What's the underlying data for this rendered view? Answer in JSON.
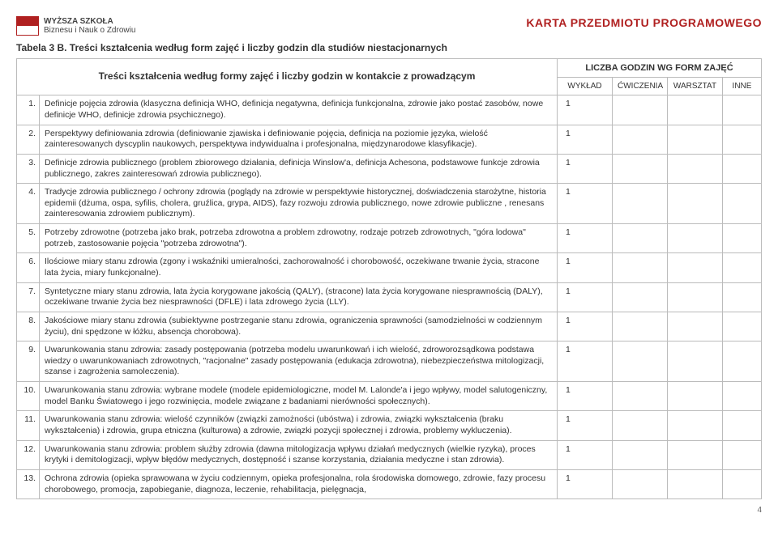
{
  "header": {
    "logo_top": "WYŻSZA SZKOŁA",
    "logo_bottom": "Biznesu i Nauk o Zdrowiu",
    "karta": "KARTA PRZEDMIOTU PROGRAMOWEGO"
  },
  "caption": "Tabela 3 B. Treści kształcenia według form zajęć i liczby godzin dla studiów niestacjonarnych",
  "table": {
    "tresci_header": "Treści kształcenia według formy zajęć i liczby godzin w kontakcie z prowadzącym",
    "liczba_header": "LICZBA GODZIN WG FORM ZAJĘĆ",
    "cols": [
      "WYKŁAD",
      "ĆWICZENIA",
      "WARSZTAT",
      "INNE"
    ]
  },
  "rows": [
    {
      "n": "1.",
      "text": "Definicje pojęcia zdrowia (klasyczna definicja WHO, definicja negatywna, definicja funkcjonalna, zdrowie jako postać zasobów, nowe definicje WHO, definicje zdrowia psychicznego).",
      "h": [
        "1",
        "",
        "",
        ""
      ]
    },
    {
      "n": "2.",
      "text": "Perspektywy definiowania zdrowia (definiowanie zjawiska i definiowanie pojęcia, definicja na poziomie języka, wielość zainteresowanych dyscyplin naukowych, perspektywa indywidualna i profesjonalna, międzynarodowe klasyfikacje).",
      "h": [
        "1",
        "",
        "",
        ""
      ]
    },
    {
      "n": "3.",
      "text": "Definicje zdrowia publicznego (problem zbiorowego działania, definicja Winslow'a, definicja Achesona, podstawowe funkcje zdrowia publicznego, zakres zainteresowań zdrowia publicznego).",
      "h": [
        "1",
        "",
        "",
        ""
      ]
    },
    {
      "n": "4.",
      "text": "Tradycje zdrowia publicznego / ochrony zdrowia (poglądy na zdrowie w perspektywie historycznej, doświadczenia starożytne, historia epidemii (dżuma, ospa, syfilis, cholera, gruźlica, grypa, AIDS), fazy rozwoju zdrowia publicznego, nowe zdrowie publiczne , renesans zainteresowania zdrowiem publicznym).",
      "h": [
        "1",
        "",
        "",
        ""
      ]
    },
    {
      "n": "5.",
      "text": "Potrzeby zdrowotne (potrzeba jako brak, potrzeba zdrowotna a problem zdrowotny, rodzaje potrzeb zdrowotnych, \"góra lodowa\" potrzeb, zastosowanie pojęcia \"potrzeba zdrowotna\").",
      "h": [
        "1",
        "",
        "",
        ""
      ]
    },
    {
      "n": "6.",
      "text": "Ilościowe miary stanu zdrowia (zgony i wskaźniki umieralności, zachorowalność i chorobowość, oczekiwane trwanie życia, stracone lata życia, miary funkcjonalne).",
      "h": [
        "1",
        "",
        "",
        ""
      ]
    },
    {
      "n": "7.",
      "text": "Syntetyczne miary stanu zdrowia, lata życia korygowane jakością (QALY), (stracone) lata życia korygowane niesprawnością (DALY), oczekiwane trwanie życia bez niesprawności (DFLE) i lata zdrowego życia (LLY).",
      "h": [
        "1",
        "",
        "",
        ""
      ]
    },
    {
      "n": "8.",
      "text": "Jakościowe miary stanu zdrowia (subiektywne postrzeganie stanu zdrowia, ograniczenia sprawności (samodzielności w codziennym życiu), dni spędzone w łóżku, absencja chorobowa).",
      "h": [
        "1",
        "",
        "",
        ""
      ]
    },
    {
      "n": "9.",
      "text": "Uwarunkowania stanu zdrowia: zasady postępowania (potrzeba modelu uwarunkowań i ich wielość, zdroworozsądkowa podstawa wiedzy o uwarunkowaniach zdrowotnych, \"racjonalne\" zasady postępowania (edukacja zdrowotna), niebezpieczeństwa mitologizacji, szanse i zagrożenia samoleczenia).",
      "h": [
        "1",
        "",
        "",
        ""
      ]
    },
    {
      "n": "10.",
      "text": "Uwarunkowania stanu zdrowia: wybrane modele (modele epidemiologiczne, model M. Lalonde'a i jego wpływy, model salutogeniczny, model Banku Światowego i jego rozwinięcia, modele związane z badaniami nierówności społecznych).",
      "h": [
        "1",
        "",
        "",
        ""
      ]
    },
    {
      "n": "11.",
      "text": "Uwarunkowania stanu zdrowia: wielość czynników (związki zamożności (ubóstwa) i zdrowia, związki wykształcenia (braku wykształcenia) i zdrowia, grupa etniczna (kulturowa) a zdrowie, związki pozycji społecznej i zdrowia, problemy wykluczenia).",
      "h": [
        "1",
        "",
        "",
        ""
      ]
    },
    {
      "n": "12.",
      "text": "Uwarunkowania stanu zdrowia: problem służby zdrowia (dawna mitologizacja wpływu działań medycznych (wielkie ryzyka), proces krytyki i demitologizacji, wpływ błędów medycznych, dostępność i szanse korzystania, działania medyczne i stan zdrowia).",
      "h": [
        "1",
        "",
        "",
        ""
      ]
    },
    {
      "n": "13.",
      "text": "Ochrona zdrowia (opieka sprawowana w życiu codziennym, opieka profesjonalna, rola środowiska domowego, zdrowie, fazy procesu chorobowego, promocja, zapobieganie, diagnoza, leczenie, rehabilitacja, pielęgnacja,",
      "h": [
        "1",
        "",
        "",
        ""
      ]
    }
  ],
  "page_number": "4"
}
